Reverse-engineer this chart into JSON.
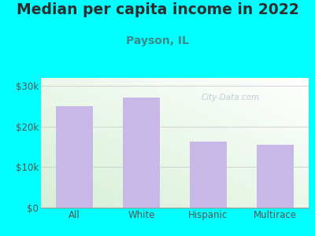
{
  "title": "Median per capita income in 2022",
  "subtitle": "Payson, IL",
  "categories": [
    "All",
    "White",
    "Hispanic",
    "Multirace"
  ],
  "values": [
    25000,
    27200,
    16200,
    15500
  ],
  "bar_color": "#c8b8e8",
  "background_color": "#00FFFF",
  "title_color": "#2d2d2d",
  "subtitle_color": "#3a8a8a",
  "tick_color": "#555555",
  "ylim": [
    0,
    32000
  ],
  "yticks": [
    0,
    10000,
    20000,
    30000
  ],
  "ytick_labels": [
    "$0",
    "$10k",
    "$20k",
    "$30k"
  ],
  "watermark": "City-Data.com",
  "title_fontsize": 13.5,
  "subtitle_fontsize": 10,
  "tick_fontsize": 8.5,
  "bar_width": 0.55,
  "plot_bg_left": "#d6efd6",
  "plot_bg_right": "#f5fbf8"
}
